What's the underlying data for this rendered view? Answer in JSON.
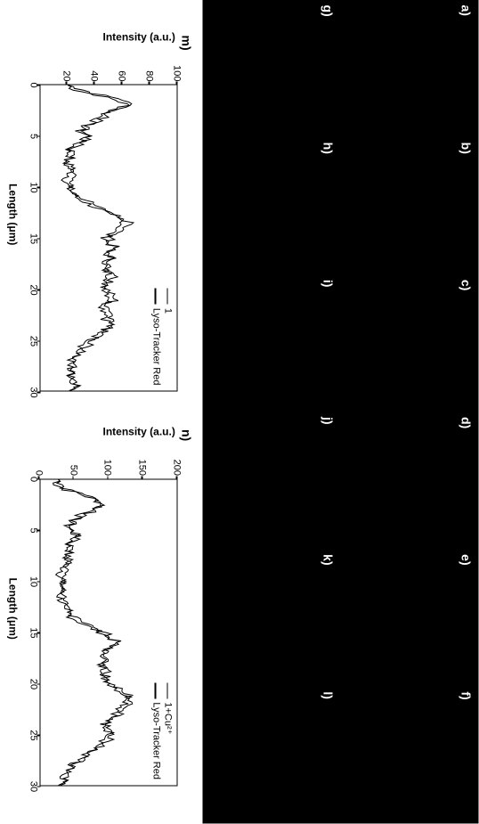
{
  "layout": {
    "image_rows": 2,
    "image_cols": 6,
    "image_bg": "#000000",
    "label_color": "#ffffff"
  },
  "panel_labels": [
    "a)",
    "b)",
    "c)",
    "d)",
    "e)",
    "f)",
    "g)",
    "h)",
    "i)",
    "j)",
    "k)",
    "l)"
  ],
  "chart_m": {
    "label": "m)",
    "type": "line",
    "ylabel": "Intensity (a.u.)",
    "xlabel": "Length (μm)",
    "ylim": [
      0,
      100
    ],
    "yticks": [
      20,
      40,
      60,
      80,
      100
    ],
    "xlim": [
      0,
      30
    ],
    "xticks": [
      0,
      5,
      10,
      15,
      20,
      25,
      30
    ],
    "legend": [
      "1",
      "Lyso-Tracker Red"
    ],
    "line_color": "#000000",
    "line_width": 1,
    "axis_fontsize": 12,
    "tick_fontsize": 11,
    "series1": [
      [
        0,
        22
      ],
      [
        0.5,
        28
      ],
      [
        1,
        45
      ],
      [
        1.5,
        60
      ],
      [
        2,
        68
      ],
      [
        2.5,
        55
      ],
      [
        3,
        48
      ],
      [
        3.5,
        42
      ],
      [
        4,
        35
      ],
      [
        4.5,
        30
      ],
      [
        5,
        38
      ],
      [
        5.5,
        32
      ],
      [
        6,
        26
      ],
      [
        6.5,
        22
      ],
      [
        7,
        24
      ],
      [
        7.5,
        20
      ],
      [
        8,
        22
      ],
      [
        8.5,
        25
      ],
      [
        9,
        23
      ],
      [
        9.5,
        20
      ],
      [
        10,
        22
      ],
      [
        10.5,
        25
      ],
      [
        11,
        28
      ],
      [
        11.5,
        35
      ],
      [
        12,
        42
      ],
      [
        12.5,
        50
      ],
      [
        13,
        58
      ],
      [
        13.5,
        65
      ],
      [
        14,
        60
      ],
      [
        14.5,
        55
      ],
      [
        15,
        50
      ],
      [
        15.5,
        52
      ],
      [
        16,
        56
      ],
      [
        16.5,
        50
      ],
      [
        17,
        55
      ],
      [
        17.5,
        50
      ],
      [
        18,
        48
      ],
      [
        18.5,
        52
      ],
      [
        19,
        55
      ],
      [
        19.5,
        48
      ],
      [
        20,
        50
      ],
      [
        20.5,
        52
      ],
      [
        21,
        55
      ],
      [
        21.5,
        50
      ],
      [
        22,
        48
      ],
      [
        22.5,
        52
      ],
      [
        23,
        50
      ],
      [
        23.5,
        55
      ],
      [
        24,
        48
      ],
      [
        24.5,
        45
      ],
      [
        25,
        40
      ],
      [
        25.5,
        35
      ],
      [
        26,
        30
      ],
      [
        26.5,
        28
      ],
      [
        27,
        25
      ],
      [
        27.5,
        22
      ],
      [
        28,
        24
      ],
      [
        28.5,
        22
      ],
      [
        29,
        25
      ],
      [
        29.5,
        26
      ],
      [
        30,
        24
      ]
    ],
    "series2": [
      [
        0,
        20
      ],
      [
        0.5,
        26
      ],
      [
        1,
        42
      ],
      [
        1.5,
        56
      ],
      [
        2,
        64
      ],
      [
        2.5,
        52
      ],
      [
        3,
        45
      ],
      [
        3.5,
        40
      ],
      [
        4,
        33
      ],
      [
        4.5,
        28
      ],
      [
        5,
        35
      ],
      [
        5.5,
        30
      ],
      [
        6,
        24
      ],
      [
        6.5,
        20
      ],
      [
        7,
        22
      ],
      [
        7.5,
        18
      ],
      [
        8,
        20
      ],
      [
        8.5,
        23
      ],
      [
        9,
        21
      ],
      [
        9.5,
        18
      ],
      [
        10,
        20
      ],
      [
        10.5,
        23
      ],
      [
        11,
        26
      ],
      [
        11.5,
        33
      ],
      [
        12,
        40
      ],
      [
        12.5,
        48
      ],
      [
        13,
        55
      ],
      [
        13.5,
        62
      ],
      [
        14,
        58
      ],
      [
        14.5,
        52
      ],
      [
        15,
        48
      ],
      [
        15.5,
        50
      ],
      [
        16,
        54
      ],
      [
        16.5,
        48
      ],
      [
        17,
        52
      ],
      [
        17.5,
        48
      ],
      [
        18,
        46
      ],
      [
        18.5,
        50
      ],
      [
        19,
        52
      ],
      [
        19.5,
        46
      ],
      [
        20,
        48
      ],
      [
        20.5,
        50
      ],
      [
        21,
        52
      ],
      [
        21.5,
        48
      ],
      [
        22,
        46
      ],
      [
        22.5,
        50
      ],
      [
        23,
        48
      ],
      [
        23.5,
        52
      ],
      [
        24,
        46
      ],
      [
        24.5,
        43
      ],
      [
        25,
        38
      ],
      [
        25.5,
        33
      ],
      [
        26,
        28
      ],
      [
        26.5,
        26
      ],
      [
        27,
        23
      ],
      [
        27.5,
        20
      ],
      [
        28,
        22
      ],
      [
        28.5,
        20
      ],
      [
        29,
        23
      ],
      [
        29.5,
        24
      ],
      [
        30,
        22
      ]
    ]
  },
  "chart_n": {
    "label": "n)",
    "type": "line",
    "ylabel": "Intensity (a.u.)",
    "xlabel": "Length (μm)",
    "ylim": [
      0,
      200
    ],
    "yticks": [
      0,
      50,
      100,
      150,
      200
    ],
    "xlim": [
      0,
      30
    ],
    "xticks": [
      0,
      5,
      10,
      15,
      20,
      25,
      30
    ],
    "legend": [
      "1+Cu²⁺",
      "Lyso-Tracker Red"
    ],
    "line_color": "#000000",
    "line_width": 1,
    "axis_fontsize": 12,
    "tick_fontsize": 11,
    "series1": [
      [
        0,
        30
      ],
      [
        0.5,
        25
      ],
      [
        1,
        40
      ],
      [
        1.5,
        65
      ],
      [
        2,
        85
      ],
      [
        2.5,
        95
      ],
      [
        3,
        80
      ],
      [
        3.5,
        60
      ],
      [
        4,
        50
      ],
      [
        4.5,
        42
      ],
      [
        5,
        48
      ],
      [
        5.5,
        55
      ],
      [
        6,
        48
      ],
      [
        6.5,
        42
      ],
      [
        7,
        45
      ],
      [
        7.5,
        40
      ],
      [
        8,
        42
      ],
      [
        8.5,
        38
      ],
      [
        9,
        35
      ],
      [
        9.5,
        30
      ],
      [
        10,
        32
      ],
      [
        10.5,
        35
      ],
      [
        11,
        33
      ],
      [
        11.5,
        30
      ],
      [
        12,
        34
      ],
      [
        12.5,
        36
      ],
      [
        13,
        42
      ],
      [
        13.5,
        48
      ],
      [
        14,
        60
      ],
      [
        14.5,
        75
      ],
      [
        15,
        92
      ],
      [
        15.5,
        105
      ],
      [
        16,
        115
      ],
      [
        16.5,
        105
      ],
      [
        17,
        95
      ],
      [
        17.5,
        100
      ],
      [
        18,
        90
      ],
      [
        18.5,
        95
      ],
      [
        19,
        100
      ],
      [
        19.5,
        95
      ],
      [
        20,
        105
      ],
      [
        20.5,
        115
      ],
      [
        21,
        125
      ],
      [
        21.5,
        135
      ],
      [
        22,
        130
      ],
      [
        22.5,
        120
      ],
      [
        23,
        115
      ],
      [
        23.5,
        105
      ],
      [
        24,
        95
      ],
      [
        24.5,
        100
      ],
      [
        25,
        108
      ],
      [
        25.5,
        100
      ],
      [
        26,
        90
      ],
      [
        26.5,
        80
      ],
      [
        27,
        70
      ],
      [
        27.5,
        58
      ],
      [
        28,
        48
      ],
      [
        28.5,
        42
      ],
      [
        29,
        38
      ],
      [
        29.5,
        34
      ],
      [
        30,
        32
      ]
    ],
    "series2": [
      [
        0,
        28
      ],
      [
        0.5,
        23
      ],
      [
        1,
        38
      ],
      [
        1.5,
        62
      ],
      [
        2,
        82
      ],
      [
        2.5,
        92
      ],
      [
        3,
        77
      ],
      [
        3.5,
        58
      ],
      [
        4,
        48
      ],
      [
        4.5,
        40
      ],
      [
        5,
        46
      ],
      [
        5.5,
        52
      ],
      [
        6,
        46
      ],
      [
        6.5,
        40
      ],
      [
        7,
        43
      ],
      [
        7.5,
        38
      ],
      [
        8,
        40
      ],
      [
        8.5,
        36
      ],
      [
        9,
        33
      ],
      [
        9.5,
        28
      ],
      [
        10,
        30
      ],
      [
        10.5,
        33
      ],
      [
        11,
        31
      ],
      [
        11.5,
        28
      ],
      [
        12,
        32
      ],
      [
        12.5,
        34
      ],
      [
        13,
        40
      ],
      [
        13.5,
        46
      ],
      [
        14,
        58
      ],
      [
        14.5,
        72
      ],
      [
        15,
        89
      ],
      [
        15.5,
        102
      ],
      [
        16,
        112
      ],
      [
        16.5,
        102
      ],
      [
        17,
        92
      ],
      [
        17.5,
        97
      ],
      [
        18,
        87
      ],
      [
        18.5,
        92
      ],
      [
        19,
        97
      ],
      [
        19.5,
        92
      ],
      [
        20,
        102
      ],
      [
        20.5,
        112
      ],
      [
        21,
        122
      ],
      [
        21.5,
        132
      ],
      [
        22,
        127
      ],
      [
        22.5,
        117
      ],
      [
        23,
        112
      ],
      [
        23.5,
        102
      ],
      [
        24,
        92
      ],
      [
        24.5,
        97
      ],
      [
        25,
        105
      ],
      [
        25.5,
        97
      ],
      [
        26,
        87
      ],
      [
        26.5,
        77
      ],
      [
        27,
        67
      ],
      [
        27.5,
        55
      ],
      [
        28,
        45
      ],
      [
        28.5,
        40
      ],
      [
        29,
        36
      ],
      [
        29.5,
        32
      ],
      [
        30,
        30
      ]
    ]
  }
}
